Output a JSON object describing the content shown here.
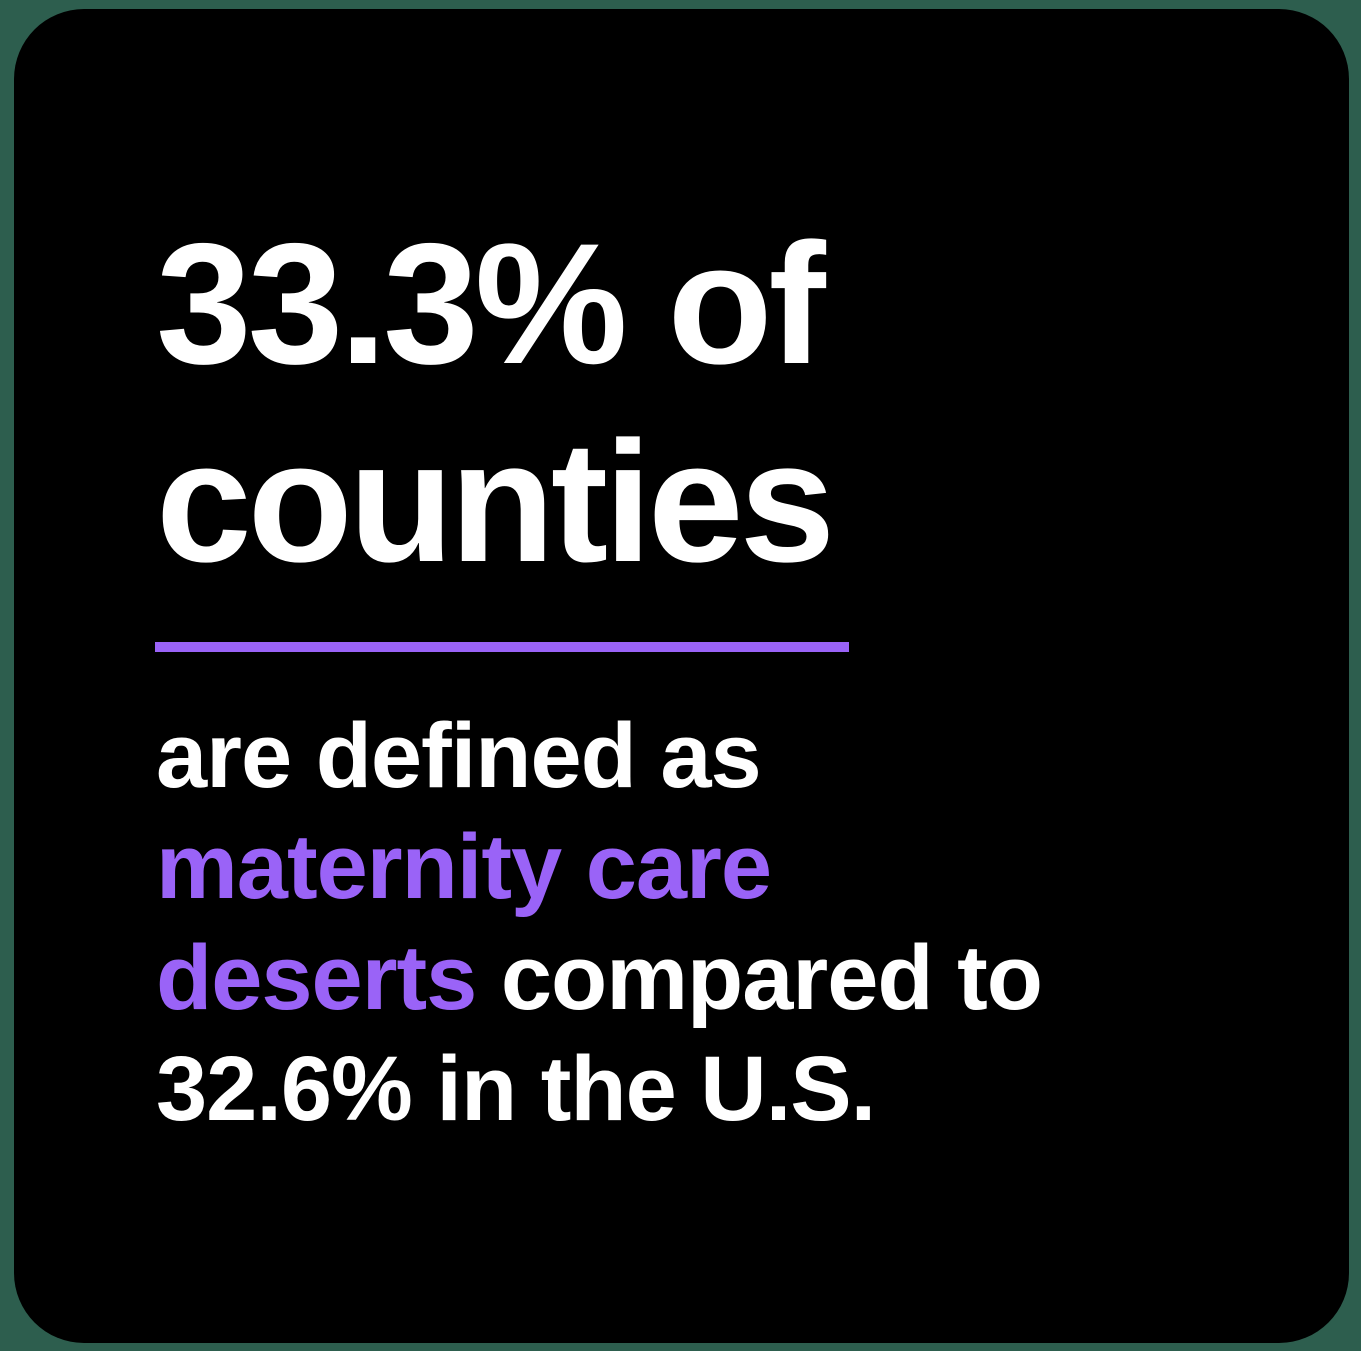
{
  "stat": {
    "line1": "33.3% of",
    "line2": "counties"
  },
  "body": {
    "line1": "are defined as",
    "highlight1": "maternity care",
    "highlight2": "deserts",
    "line3_rest": " compared to",
    "line4": "32.6% in the U.S."
  },
  "colors": {
    "background": "#2d5e4e",
    "card": "#000000",
    "text": "#ffffff",
    "accent": "#9a63f7"
  }
}
